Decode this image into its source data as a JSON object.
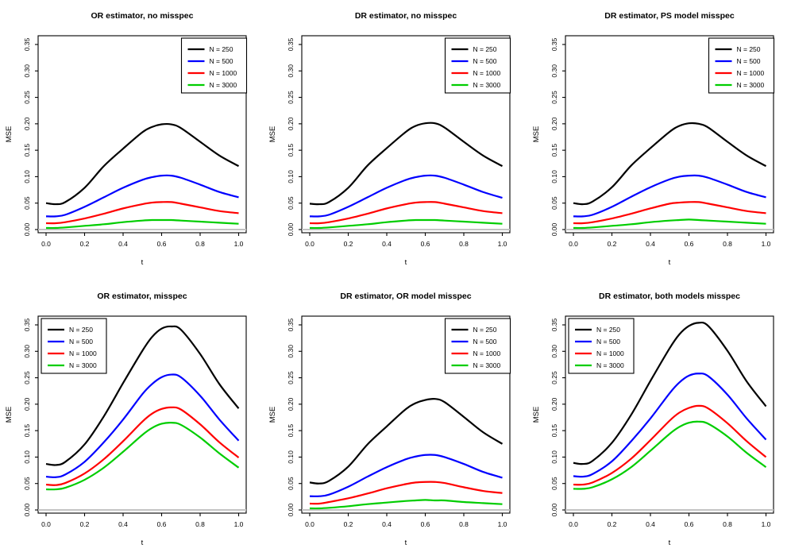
{
  "figure": {
    "background": "#ffffff",
    "axis_color": "#000000",
    "baseline_color": "#c3c3c3"
  },
  "chart_data": [
    {
      "type": "line",
      "title": "OR estimator, no misspec",
      "xlabel": "t",
      "ylabel": "MSE",
      "xlim": [
        0,
        1
      ],
      "ylim": [
        0,
        0.35
      ],
      "grid": false,
      "xticks": [
        "0.0",
        "0.2",
        "0.4",
        "0.6",
        "0.8",
        "1.0"
      ],
      "yticks": [
        "0.00",
        "0.05",
        "0.10",
        "0.15",
        "0.20",
        "0.25",
        "0.30",
        "0.35"
      ],
      "legend_position": "topright",
      "baseline_y": 0,
      "x": [
        0,
        0.05,
        0.1,
        0.2,
        0.3,
        0.4,
        0.5,
        0.55,
        0.6,
        0.65,
        0.7,
        0.8,
        0.9,
        1.0
      ],
      "series": [
        {
          "name": "N = 250",
          "color": "#000000",
          "values": [
            0.05,
            0.048,
            0.052,
            0.079,
            0.12,
            0.153,
            0.184,
            0.194,
            0.199,
            0.199,
            0.192,
            0.166,
            0.14,
            0.12
          ]
        },
        {
          "name": "N = 500",
          "color": "#0000ff",
          "values": [
            0.025,
            0.025,
            0.028,
            0.043,
            0.061,
            0.079,
            0.094,
            0.099,
            0.102,
            0.102,
            0.098,
            0.085,
            0.071,
            0.061
          ]
        },
        {
          "name": "N = 1000",
          "color": "#ff0000",
          "values": [
            0.012,
            0.012,
            0.014,
            0.021,
            0.03,
            0.04,
            0.048,
            0.051,
            0.052,
            0.052,
            0.049,
            0.042,
            0.035,
            0.031
          ]
        },
        {
          "name": "N = 3000",
          "color": "#00cd00",
          "values": [
            0.003,
            0.003,
            0.004,
            0.007,
            0.01,
            0.014,
            0.017,
            0.018,
            0.018,
            0.018,
            0.017,
            0.015,
            0.013,
            0.011
          ]
        }
      ]
    },
    {
      "type": "line",
      "title": "DR estimator, no misspec",
      "xlabel": "t",
      "ylabel": "MSE",
      "xlim": [
        0,
        1
      ],
      "ylim": [
        0,
        0.35
      ],
      "grid": false,
      "xticks": [
        "0.0",
        "0.2",
        "0.4",
        "0.6",
        "0.8",
        "1.0"
      ],
      "yticks": [
        "0.00",
        "0.05",
        "0.10",
        "0.15",
        "0.20",
        "0.25",
        "0.30",
        "0.35"
      ],
      "legend_position": "topright",
      "baseline_y": 0,
      "x": [
        0,
        0.05,
        0.1,
        0.2,
        0.3,
        0.4,
        0.5,
        0.55,
        0.6,
        0.65,
        0.7,
        0.8,
        0.9,
        1.0
      ],
      "series": [
        {
          "name": "N = 250",
          "color": "#000000",
          "values": [
            0.049,
            0.048,
            0.052,
            0.079,
            0.121,
            0.154,
            0.185,
            0.196,
            0.201,
            0.201,
            0.193,
            0.166,
            0.14,
            0.12
          ]
        },
        {
          "name": "N = 500",
          "color": "#0000ff",
          "values": [
            0.025,
            0.025,
            0.028,
            0.043,
            0.061,
            0.079,
            0.094,
            0.099,
            0.102,
            0.102,
            0.098,
            0.085,
            0.071,
            0.06
          ]
        },
        {
          "name": "N = 1000",
          "color": "#ff0000",
          "values": [
            0.012,
            0.012,
            0.014,
            0.021,
            0.03,
            0.04,
            0.048,
            0.051,
            0.052,
            0.052,
            0.049,
            0.042,
            0.035,
            0.031
          ]
        },
        {
          "name": "N = 3000",
          "color": "#00cd00",
          "values": [
            0.003,
            0.003,
            0.004,
            0.007,
            0.01,
            0.014,
            0.017,
            0.018,
            0.018,
            0.018,
            0.017,
            0.015,
            0.013,
            0.011
          ]
        }
      ]
    },
    {
      "type": "line",
      "title": "DR estimator, PS model misspec",
      "xlabel": "t",
      "ylabel": "MSE",
      "xlim": [
        0,
        1
      ],
      "ylim": [
        0,
        0.35
      ],
      "grid": false,
      "xticks": [
        "0.0",
        "0.2",
        "0.4",
        "0.6",
        "0.8",
        "1.0"
      ],
      "yticks": [
        "0.00",
        "0.05",
        "0.10",
        "0.15",
        "0.20",
        "0.25",
        "0.30",
        "0.35"
      ],
      "legend_position": "topright",
      "baseline_y": 0,
      "x": [
        0,
        0.05,
        0.1,
        0.2,
        0.3,
        0.4,
        0.5,
        0.55,
        0.6,
        0.65,
        0.7,
        0.8,
        0.9,
        1.0
      ],
      "series": [
        {
          "name": "N = 250",
          "color": "#000000",
          "values": [
            0.05,
            0.048,
            0.053,
            0.08,
            0.121,
            0.154,
            0.185,
            0.196,
            0.201,
            0.2,
            0.193,
            0.166,
            0.14,
            0.12
          ]
        },
        {
          "name": "N = 500",
          "color": "#0000ff",
          "values": [
            0.025,
            0.025,
            0.028,
            0.043,
            0.062,
            0.08,
            0.095,
            0.1,
            0.102,
            0.102,
            0.098,
            0.085,
            0.071,
            0.061
          ]
        },
        {
          "name": "N = 1000",
          "color": "#ff0000",
          "values": [
            0.012,
            0.012,
            0.014,
            0.021,
            0.03,
            0.04,
            0.049,
            0.051,
            0.052,
            0.052,
            0.049,
            0.042,
            0.035,
            0.031
          ]
        },
        {
          "name": "N = 3000",
          "color": "#00cd00",
          "values": [
            0.003,
            0.003,
            0.004,
            0.007,
            0.01,
            0.014,
            0.017,
            0.018,
            0.019,
            0.018,
            0.017,
            0.015,
            0.013,
            0.011
          ]
        }
      ]
    },
    {
      "type": "line",
      "title": "OR estimator, misspec",
      "xlabel": "t",
      "ylabel": "MSE",
      "xlim": [
        0,
        1
      ],
      "ylim": [
        0,
        0.35
      ],
      "grid": false,
      "xticks": [
        "0.0",
        "0.2",
        "0.4",
        "0.6",
        "0.8",
        "1.0"
      ],
      "yticks": [
        "0.00",
        "0.05",
        "0.10",
        "0.15",
        "0.20",
        "0.25",
        "0.30",
        "0.35"
      ],
      "legend_position": "topleft",
      "baseline_y": 0,
      "x": [
        0,
        0.05,
        0.1,
        0.2,
        0.3,
        0.4,
        0.5,
        0.55,
        0.6,
        0.65,
        0.7,
        0.8,
        0.9,
        1.0
      ],
      "series": [
        {
          "name": "N = 250",
          "color": "#000000",
          "values": [
            0.087,
            0.085,
            0.091,
            0.124,
            0.177,
            0.24,
            0.301,
            0.327,
            0.343,
            0.347,
            0.341,
            0.295,
            0.238,
            0.192
          ]
        },
        {
          "name": "N = 500",
          "color": "#0000ff",
          "values": [
            0.063,
            0.062,
            0.067,
            0.091,
            0.128,
            0.171,
            0.219,
            0.238,
            0.251,
            0.256,
            0.251,
            0.216,
            0.171,
            0.131
          ]
        },
        {
          "name": "N = 1000",
          "color": "#ff0000",
          "values": [
            0.048,
            0.047,
            0.051,
            0.069,
            0.096,
            0.13,
            0.167,
            0.182,
            0.191,
            0.194,
            0.19,
            0.162,
            0.128,
            0.099
          ]
        },
        {
          "name": "N = 3000",
          "color": "#00cd00",
          "values": [
            0.039,
            0.039,
            0.042,
            0.057,
            0.08,
            0.11,
            0.142,
            0.155,
            0.163,
            0.165,
            0.161,
            0.137,
            0.107,
            0.08
          ]
        }
      ]
    },
    {
      "type": "line",
      "title": "DR estimator, OR model misspec",
      "xlabel": "t",
      "ylabel": "MSE",
      "xlim": [
        0,
        1
      ],
      "ylim": [
        0,
        0.35
      ],
      "grid": false,
      "xticks": [
        "0.0",
        "0.2",
        "0.4",
        "0.6",
        "0.8",
        "1.0"
      ],
      "yticks": [
        "0.00",
        "0.05",
        "0.10",
        "0.15",
        "0.20",
        "0.25",
        "0.30",
        "0.35"
      ],
      "legend_position": "topright",
      "baseline_y": 0,
      "x": [
        0,
        0.05,
        0.1,
        0.2,
        0.3,
        0.4,
        0.5,
        0.55,
        0.6,
        0.65,
        0.7,
        0.8,
        0.9,
        1.0
      ],
      "series": [
        {
          "name": "N = 250",
          "color": "#000000",
          "values": [
            0.052,
            0.05,
            0.055,
            0.082,
            0.124,
            0.158,
            0.191,
            0.202,
            0.208,
            0.21,
            0.204,
            0.176,
            0.147,
            0.125
          ]
        },
        {
          "name": "N = 500",
          "color": "#0000ff",
          "values": [
            0.026,
            0.026,
            0.029,
            0.044,
            0.063,
            0.081,
            0.096,
            0.101,
            0.104,
            0.104,
            0.1,
            0.087,
            0.072,
            0.061
          ]
        },
        {
          "name": "N = 1000",
          "color": "#ff0000",
          "values": [
            0.012,
            0.012,
            0.015,
            0.022,
            0.031,
            0.041,
            0.049,
            0.052,
            0.053,
            0.053,
            0.051,
            0.043,
            0.036,
            0.032
          ]
        },
        {
          "name": "N = 3000",
          "color": "#00cd00",
          "values": [
            0.003,
            0.003,
            0.004,
            0.007,
            0.011,
            0.014,
            0.017,
            0.018,
            0.019,
            0.018,
            0.018,
            0.015,
            0.013,
            0.011
          ]
        }
      ]
    },
    {
      "type": "line",
      "title": "DR estimator, both models misspec",
      "xlabel": "t",
      "ylabel": "MSE",
      "xlim": [
        0,
        1
      ],
      "ylim": [
        0,
        0.35
      ],
      "grid": false,
      "xticks": [
        "0.0",
        "0.2",
        "0.4",
        "0.6",
        "0.8",
        "1.0"
      ],
      "yticks": [
        "0.00",
        "0.05",
        "0.10",
        "0.15",
        "0.20",
        "0.25",
        "0.30",
        "0.35"
      ],
      "legend_position": "topleft",
      "baseline_y": 0,
      "x": [
        0,
        0.05,
        0.1,
        0.2,
        0.3,
        0.4,
        0.5,
        0.55,
        0.6,
        0.65,
        0.7,
        0.8,
        0.9,
        1.0
      ],
      "series": [
        {
          "name": "N = 250",
          "color": "#000000",
          "values": [
            0.089,
            0.087,
            0.093,
            0.127,
            0.18,
            0.244,
            0.306,
            0.332,
            0.348,
            0.354,
            0.348,
            0.301,
            0.243,
            0.196
          ]
        },
        {
          "name": "N = 500",
          "color": "#0000ff",
          "values": [
            0.064,
            0.063,
            0.068,
            0.092,
            0.13,
            0.173,
            0.221,
            0.241,
            0.254,
            0.258,
            0.253,
            0.218,
            0.173,
            0.133
          ]
        },
        {
          "name": "N = 1000",
          "color": "#ff0000",
          "values": [
            0.048,
            0.048,
            0.052,
            0.07,
            0.097,
            0.132,
            0.169,
            0.184,
            0.193,
            0.197,
            0.192,
            0.164,
            0.13,
            0.1
          ]
        },
        {
          "name": "N = 3000",
          "color": "#00cd00",
          "values": [
            0.04,
            0.04,
            0.043,
            0.058,
            0.081,
            0.112,
            0.144,
            0.157,
            0.165,
            0.167,
            0.163,
            0.139,
            0.108,
            0.081
          ]
        }
      ]
    }
  ]
}
